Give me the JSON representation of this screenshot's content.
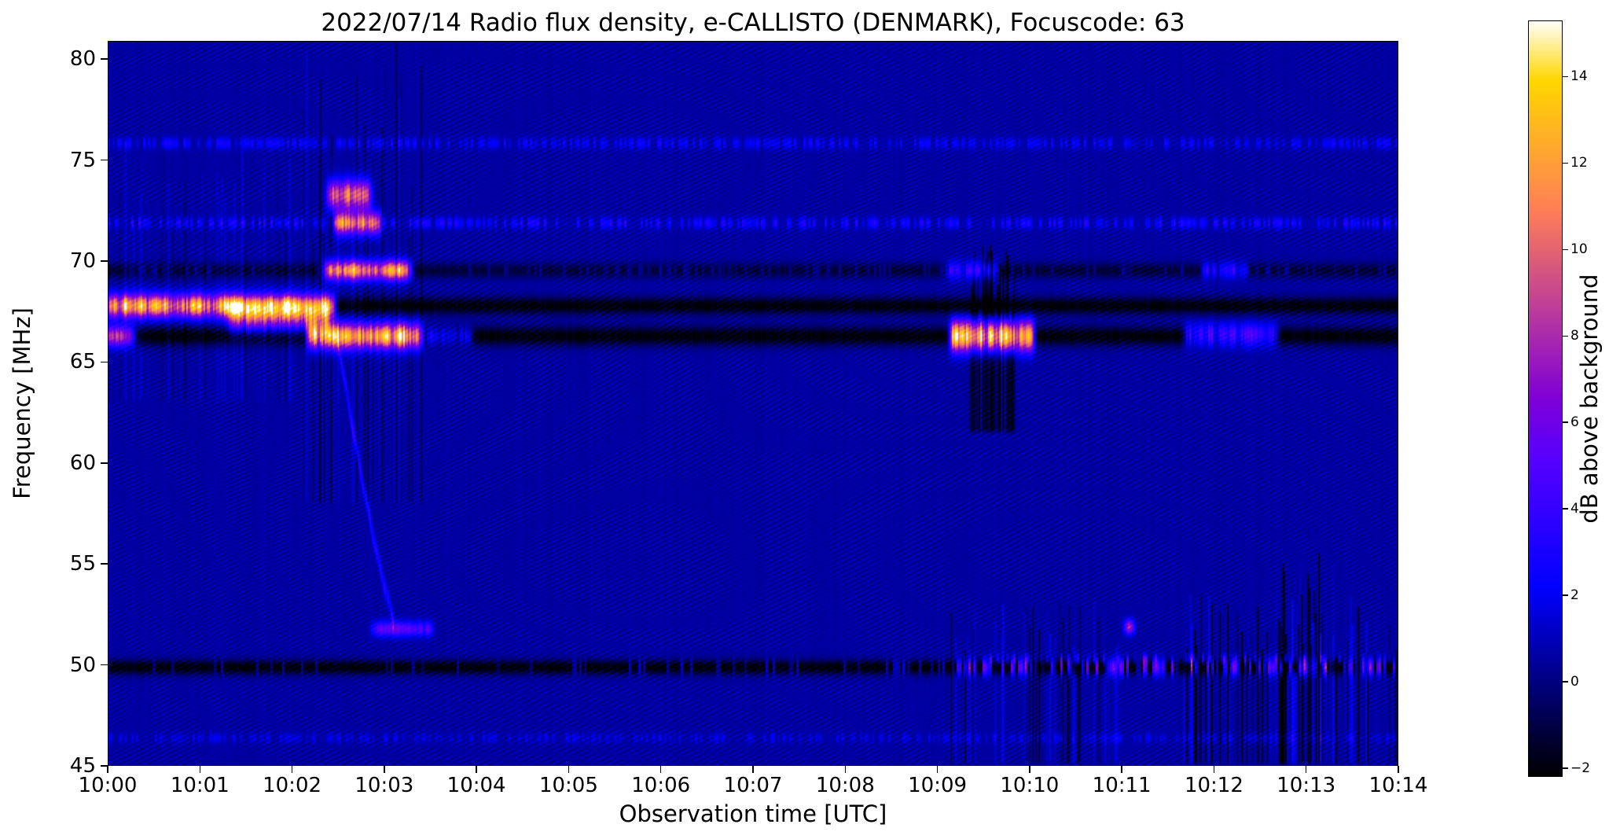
{
  "figure": {
    "title": "2022/07/14  Radio flux density, e-CALLISTO (DENMARK), Focuscode: 63",
    "xlabel": "Observation time [UTC]",
    "ylabel": "Frequency [MHz]",
    "colorbar_label": "dB above background"
  },
  "chart_data": {
    "type": "heatmap",
    "title": "2022/07/14  Radio flux density, e-CALLISTO (DENMARK), Focuscode: 63",
    "xlabel": "Observation time [UTC]",
    "ylabel": "Frequency [MHz]",
    "x_ticks": [
      "10:00",
      "10:01",
      "10:02",
      "10:03",
      "10:04",
      "10:05",
      "10:06",
      "10:07",
      "10:08",
      "10:09",
      "10:10",
      "10:11",
      "10:12",
      "10:13",
      "10:14"
    ],
    "y_ticks": [
      45,
      50,
      55,
      60,
      65,
      70,
      75,
      80
    ],
    "x_range_seconds": [
      0,
      840
    ],
    "y_range_mhz": [
      45,
      80.9
    ],
    "grid": false,
    "colormap": "gnuplot2",
    "background_level_db": 0.55,
    "legend": "none",
    "colorbar": {
      "label": "dB above background",
      "ticks": [
        -2,
        0,
        2,
        4,
        6,
        8,
        10,
        12,
        14
      ],
      "tick_labels": [
        "−2",
        "0",
        "2",
        "4",
        "6",
        "8",
        "10",
        "12",
        "14"
      ],
      "range": [
        -2.2,
        15.3
      ]
    },
    "events": [
      {
        "time": "10:00-10:02.4",
        "freq_mhz": "67.8",
        "desc": "strong narrowband emission, ~10-13 dB, orange-yellow band"
      },
      {
        "time": "10:01.3-10:02.4",
        "freq_mhz": "67.1",
        "desc": "diffuse pink enhancement ~6 dB"
      },
      {
        "time": "10:02.2-10:03.4",
        "freq_mhz": "66.3",
        "desc": "bright burst up to ~14 dB"
      },
      {
        "time": "10:02.3-10:03.2",
        "freq_mhz": "69.5",
        "desc": "bright burst ~10 dB"
      },
      {
        "time": "10:02.4-10:03.0",
        "freq_mhz": "71.9 / 73.3",
        "desc": "bright patches ~9 dB"
      },
      {
        "time": "10:02.5-10:03.1",
        "freq_mhz": "66 to 52",
        "desc": "faint drifting lane down to 52 MHz"
      },
      {
        "time": "10:02.9-10:03.5",
        "freq_mhz": "51.8",
        "desc": "short blue dash ~4 dB"
      },
      {
        "time": "10:09.1-10:10.0",
        "freq_mhz": "66.3",
        "desc": "bright burst up to ~15 dB with dark flanks 62-70 MHz"
      },
      {
        "time": "10:09-10:14",
        "freq_mhz": "49.9",
        "desc": "interference line with bright pink dashes"
      },
      {
        "time": "10:10-10:14",
        "freq_mhz": "45-53",
        "desc": "clusters of dark and bright vertical RFI streaks"
      },
      {
        "time": "10:11.1",
        "freq_mhz": "51.9",
        "desc": "isolated orange dot ~9 dB"
      },
      {
        "time": "all",
        "freq_mhz": "50 / 66.3 / 67.8 / 69.5",
        "desc": "persistent dark interference lines"
      },
      {
        "time": "all",
        "freq_mhz": "46.4 / 71.9 / 75.9",
        "desc": "faint dotted blue lines"
      },
      {
        "time": "all",
        "freq_mhz": "45-81",
        "desc": "wavy moire fringes in dark blue background ~0-1 dB"
      }
    ],
    "features": {
      "hlines": [
        {
          "f": 75.85,
          "w": 0.2,
          "amp": 1.6,
          "t0": 0,
          "t1": 840,
          "speckle": 0.55
        },
        {
          "f": 71.9,
          "w": 0.2,
          "amp": 2.0,
          "t0": 0,
          "t1": 840,
          "speckle": 0.5
        },
        {
          "f": 69.55,
          "w": 0.26,
          "amp": -1.9,
          "t0": 0,
          "t1": 840
        },
        {
          "f": 69.55,
          "w": 0.18,
          "amp": 1.4,
          "t0": 0,
          "t1": 840,
          "speckle": 0.22
        },
        {
          "f": 67.8,
          "w": 0.3,
          "amp": -2.7,
          "t0": 0,
          "t1": 840
        },
        {
          "f": 66.3,
          "w": 0.34,
          "amp": -2.7,
          "t0": 0,
          "t1": 840
        },
        {
          "f": 49.9,
          "w": 0.26,
          "amp": -2.7,
          "t0": 0,
          "t1": 840
        },
        {
          "f": 46.4,
          "w": 0.18,
          "amp": 1.1,
          "t0": 0,
          "t1": 840,
          "speckle": 0.5
        }
      ],
      "blobs": [
        {
          "f": 67.8,
          "wf": 0.38,
          "t0": -5,
          "t1": 148,
          "amp": 14,
          "tex": 0.35
        },
        {
          "f": 67.15,
          "wf": 0.5,
          "t0": 78,
          "t1": 146,
          "amp": 6,
          "tex": 0.45
        },
        {
          "f": 66.3,
          "wf": 0.42,
          "t0": 130,
          "t1": 205,
          "amp": 15,
          "tex": 0.35
        },
        {
          "f": 66.3,
          "wf": 0.3,
          "t0": 205,
          "t1": 238,
          "amp": 4,
          "tex": 0.5
        },
        {
          "f": 66.3,
          "wf": 0.35,
          "t0": -5,
          "t1": 18,
          "amp": 9,
          "tex": 0.4
        },
        {
          "f": 69.55,
          "wf": 0.33,
          "t0": 140,
          "t1": 198,
          "amp": 12,
          "tex": 0.35
        },
        {
          "f": 71.9,
          "wf": 0.4,
          "t0": 148,
          "t1": 178,
          "amp": 9.5,
          "tex": 0.35
        },
        {
          "f": 73.3,
          "wf": 0.5,
          "t0": 143,
          "t1": 172,
          "amp": 9,
          "tex": 0.35
        },
        {
          "f": 51.8,
          "wf": 0.26,
          "t0": 172,
          "t1": 212,
          "amp": 4.5,
          "tex": 0.4
        },
        {
          "f": 66.3,
          "wf": 0.5,
          "t0": 548,
          "t1": 603,
          "amp": 15.5,
          "tex": 0.35
        },
        {
          "f": 69.55,
          "wf": 0.3,
          "t0": 545,
          "t1": 580,
          "amp": 4.5,
          "tex": 0.5
        },
        {
          "f": 66.35,
          "wf": 0.38,
          "t0": 700,
          "t1": 762,
          "amp": 5.5,
          "tex": 0.5
        },
        {
          "f": 69.55,
          "wf": 0.28,
          "t0": 712,
          "t1": 742,
          "amp": 3.5,
          "tex": 0.5
        },
        {
          "f": 51.9,
          "wf": 0.25,
          "t0": 662,
          "t1": 668,
          "amp": 9,
          "tex": 0.2
        }
      ],
      "specklelines": [
        {
          "f": 49.9,
          "w": 0.24,
          "t0": 0,
          "t1": 300,
          "density": 0.08,
          "a0": 1,
          "a1": 3
        },
        {
          "f": 49.9,
          "w": 0.26,
          "t0": 300,
          "t1": 545,
          "density": 0.16,
          "a0": 1.5,
          "a1": 4
        },
        {
          "f": 49.9,
          "w": 0.28,
          "t0": 545,
          "t1": 705,
          "density": 0.45,
          "a0": 2,
          "a1": 9
        },
        {
          "f": 49.9,
          "w": 0.28,
          "t0": 705,
          "t1": 840,
          "density": 0.5,
          "a0": 2,
          "a1": 10
        },
        {
          "f": 50.3,
          "w": 0.18,
          "t0": 560,
          "t1": 840,
          "density": 0.2,
          "a0": 1,
          "a1": 4
        }
      ],
      "drifts": [
        {
          "pts": [
            [
              150,
              66.0
            ],
            [
              157,
              62.8
            ],
            [
              166,
              59.0
            ],
            [
              176,
              55.2
            ],
            [
              186,
              52.2
            ]
          ],
          "w": 0.32,
          "amp": 2.6
        }
      ],
      "vclusters": [
        {
          "t0": 0,
          "t1": 150,
          "f0": 63,
          "f1": 76,
          "density": 0.45,
          "a0": -0.7,
          "a1": 0.9
        },
        {
          "t0": 126,
          "t1": 206,
          "f0": 58,
          "f1": 80.9,
          "density": 0.5,
          "a0": -1.5,
          "a1": 0.9
        },
        {
          "t0": 560,
          "t1": 590,
          "f0": 61.5,
          "f1": 70.8,
          "density": 0.9,
          "a0": -2.8,
          "a1": -1.2
        },
        {
          "t0": 545,
          "t1": 660,
          "f0": 45,
          "f1": 53.2,
          "density": 0.35,
          "a0": -2.2,
          "a1": 1.5
        },
        {
          "t0": 700,
          "t1": 842,
          "f0": 45,
          "f1": 53.5,
          "density": 0.5,
          "a0": -2.6,
          "a1": 1.8
        },
        {
          "t0": 752,
          "t1": 802,
          "f0": 45,
          "f1": 56.5,
          "density": 0.3,
          "a0": -2.4,
          "a1": 0.5
        }
      ]
    }
  }
}
